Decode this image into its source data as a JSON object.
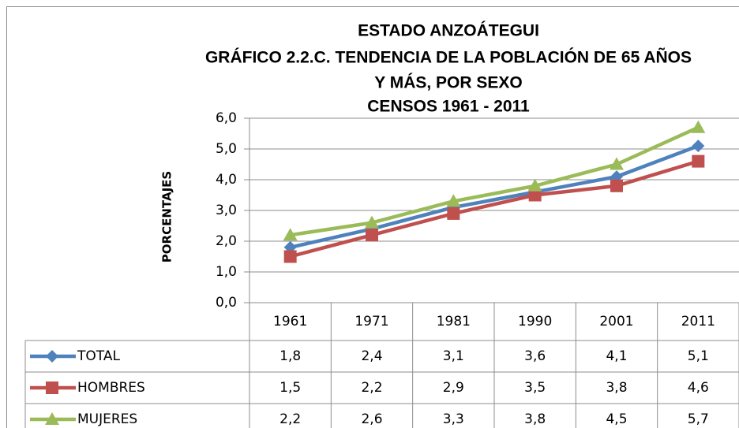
{
  "chart_data": {
    "type": "line",
    "title": [
      "ESTADO ANZOÁTEGUI",
      "GRÁFICO 2.2.C. TENDENCIA DE LA POBLACIÓN DE 65 AÑOS",
      "Y MÁS, POR SEXO",
      "CENSOS 1961 - 2011"
    ],
    "y_label": "PORCENTAJES",
    "categories": [
      "1961",
      "1971",
      "1981",
      "1990",
      "2001",
      "2011"
    ],
    "series": [
      {
        "name": "TOTAL",
        "color": "#4f81bd",
        "marker": "diamond",
        "values": [
          1.8,
          2.4,
          3.1,
          3.6,
          4.1,
          5.1
        ],
        "value_labels": [
          "1,8",
          "2,4",
          "3,1",
          "3,6",
          "4,1",
          "5,1"
        ]
      },
      {
        "name": "HOMBRES",
        "color": "#c0504d",
        "marker": "square",
        "values": [
          1.5,
          2.2,
          2.9,
          3.5,
          3.8,
          4.6
        ],
        "value_labels": [
          "1,5",
          "2,2",
          "2,9",
          "3,5",
          "3,8",
          "4,6"
        ]
      },
      {
        "name": "MUJERES",
        "color": "#9bbb59",
        "marker": "triangle",
        "values": [
          2.2,
          2.6,
          3.3,
          3.8,
          4.5,
          5.7
        ],
        "value_labels": [
          "2,2",
          "2,6",
          "3,3",
          "3,8",
          "4,5",
          "5,7"
        ]
      }
    ],
    "ylim": [
      0,
      6
    ],
    "yticks": [
      {
        "value": 0,
        "label": "0,0"
      },
      {
        "value": 1,
        "label": "1,0"
      },
      {
        "value": 2,
        "label": "2,0"
      },
      {
        "value": 3,
        "label": "3,0"
      },
      {
        "value": 4,
        "label": "4,0"
      },
      {
        "value": 5,
        "label": "5,0"
      },
      {
        "value": 6,
        "label": "6,0"
      }
    ],
    "grid": true
  }
}
